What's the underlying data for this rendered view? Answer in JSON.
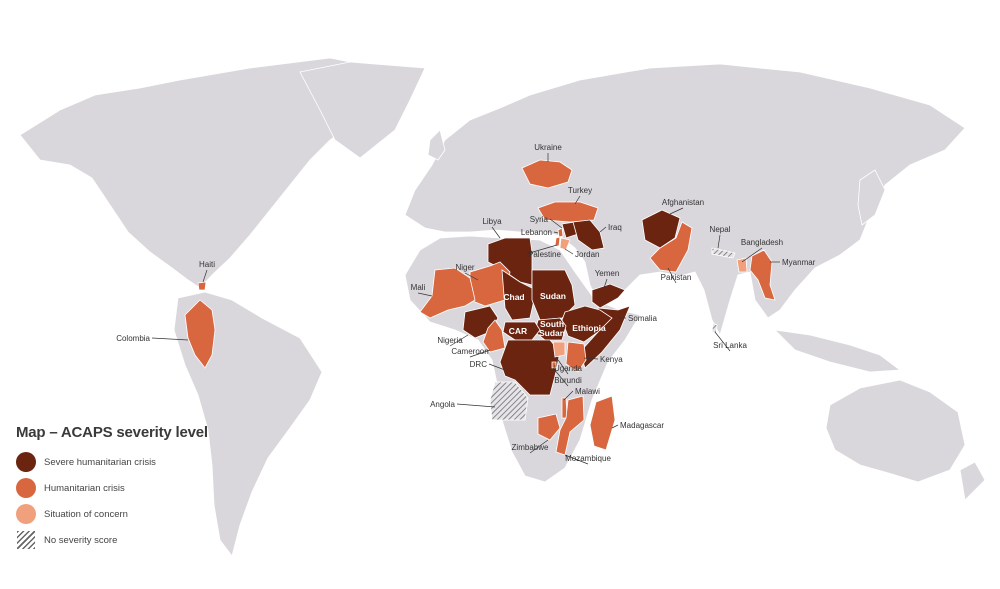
{
  "legend": {
    "title": "Map – ACAPS severity level",
    "items": [
      {
        "label": "Severe humanitarian crisis",
        "color": "#6b2410",
        "key": "severe"
      },
      {
        "label": "Humanitarian crisis",
        "color": "#d8673f",
        "key": "crisis"
      },
      {
        "label": "Situation of concern",
        "color": "#f0a07c",
        "key": "concern"
      },
      {
        "label": "No severity score",
        "color": "hatched",
        "key": "none"
      }
    ]
  },
  "colors": {
    "land": "#d9d7dc",
    "border": "#ffffff",
    "background": "#ffffff"
  },
  "countries": [
    {
      "name": "Ukraine",
      "severity": "crisis"
    },
    {
      "name": "Turkey",
      "severity": "crisis"
    },
    {
      "name": "Syria",
      "severity": "severe"
    },
    {
      "name": "Lebanon",
      "severity": "crisis"
    },
    {
      "name": "Iraq",
      "severity": "severe"
    },
    {
      "name": "Palestine",
      "severity": "crisis"
    },
    {
      "name": "Jordan",
      "severity": "concern"
    },
    {
      "name": "Afghanistan",
      "severity": "severe"
    },
    {
      "name": "Pakistan",
      "severity": "crisis"
    },
    {
      "name": "Nepal",
      "severity": "none"
    },
    {
      "name": "Bangladesh",
      "severity": "concern"
    },
    {
      "name": "Myanmar",
      "severity": "crisis"
    },
    {
      "name": "Sri Lanka",
      "severity": "none"
    },
    {
      "name": "Libya",
      "severity": "severe"
    },
    {
      "name": "Niger",
      "severity": "crisis"
    },
    {
      "name": "Mali",
      "severity": "crisis"
    },
    {
      "name": "Chad",
      "severity": "severe"
    },
    {
      "name": "Sudan",
      "severity": "severe"
    },
    {
      "name": "Yemen",
      "severity": "severe"
    },
    {
      "name": "Somalia",
      "severity": "severe"
    },
    {
      "name": "Ethiopia",
      "severity": "severe"
    },
    {
      "name": "South Sudan",
      "severity": "severe"
    },
    {
      "name": "CAR",
      "severity": "severe"
    },
    {
      "name": "Nigeria",
      "severity": "severe"
    },
    {
      "name": "Cameroon",
      "severity": "crisis"
    },
    {
      "name": "DRC",
      "severity": "severe"
    },
    {
      "name": "Kenya",
      "severity": "crisis"
    },
    {
      "name": "Uganda",
      "severity": "concern"
    },
    {
      "name": "Burundi",
      "severity": "crisis"
    },
    {
      "name": "Angola",
      "severity": "none"
    },
    {
      "name": "Malawi",
      "severity": "crisis"
    },
    {
      "name": "Madagascar",
      "severity": "crisis"
    },
    {
      "name": "Zimbabwe",
      "severity": "crisis"
    },
    {
      "name": "Mozambique",
      "severity": "crisis"
    },
    {
      "name": "Haiti",
      "severity": "crisis"
    },
    {
      "name": "Colombia",
      "severity": "crisis"
    }
  ]
}
